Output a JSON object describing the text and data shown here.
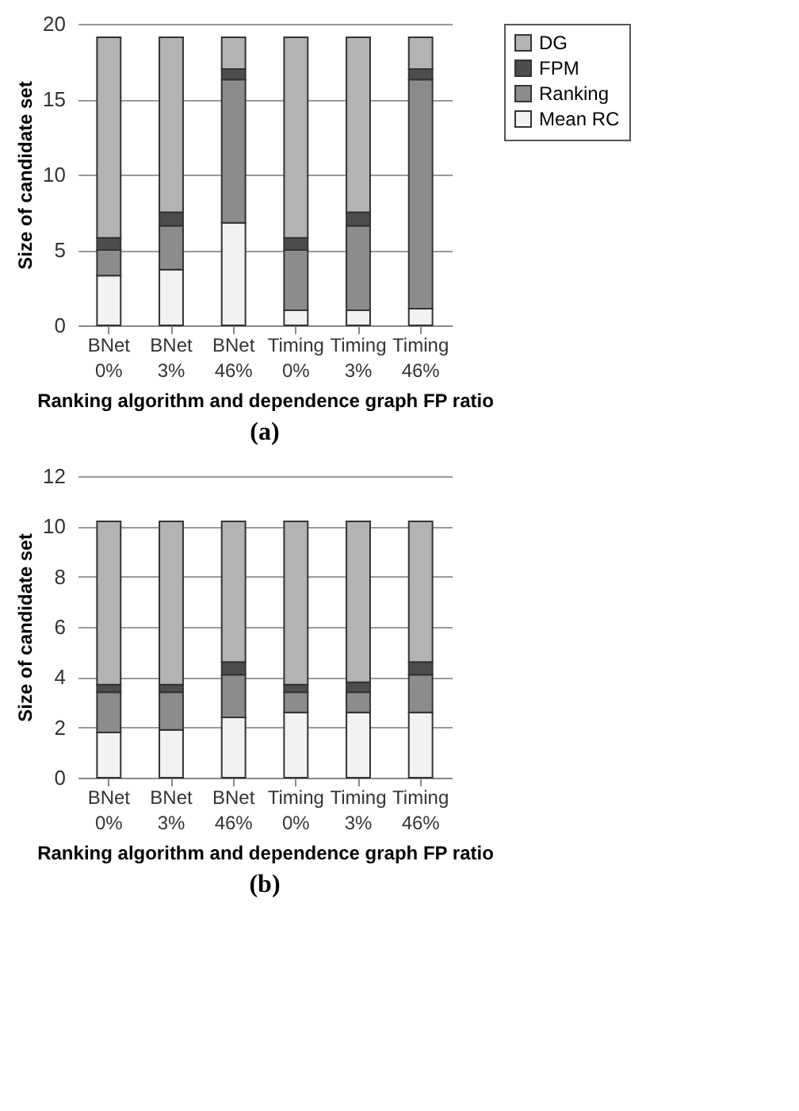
{
  "chart_data": [
    {
      "type": "bar",
      "title": "(a)",
      "xlabel": "Ranking algorithm and dependence graph FP ratio",
      "ylabel": "Size of candidate set",
      "categories": [
        "BNet 0%",
        "BNet 3%",
        "BNet 46%",
        "Timing 0%",
        "Timing 3%",
        "Timing 46%"
      ],
      "stacked": true,
      "ylim": [
        0,
        20
      ],
      "yticks": [
        0,
        5,
        10,
        15,
        20
      ],
      "grid": "y",
      "legend": "right",
      "series": [
        {
          "name": "Mean RC",
          "color": "#f2f2f2",
          "values": [
            3.3,
            3.7,
            6.8,
            1.0,
            1.0,
            1.1
          ]
        },
        {
          "name": "Ranking",
          "color": "#8c8c8c",
          "values": [
            1.7,
            2.9,
            9.5,
            4.0,
            5.6,
            15.2
          ]
        },
        {
          "name": "FPM",
          "color": "#4d4d4d",
          "values": [
            0.8,
            0.9,
            0.7,
            0.8,
            0.9,
            0.7
          ]
        },
        {
          "name": "DG",
          "color": "#b3b3b3",
          "values": [
            13.3,
            11.6,
            2.1,
            13.3,
            11.6,
            2.1
          ]
        }
      ]
    },
    {
      "type": "bar",
      "title": "(b)",
      "xlabel": "Ranking algorithm and dependence graph FP ratio",
      "ylabel": "Size of candidate set",
      "categories": [
        "BNet 0%",
        "BNet 3%",
        "BNet 46%",
        "Timing 0%",
        "Timing 3%",
        "Timing 46%"
      ],
      "stacked": true,
      "ylim": [
        0,
        12
      ],
      "yticks": [
        0,
        2,
        4,
        6,
        8,
        10,
        12
      ],
      "grid": "y",
      "legend": "right",
      "series": [
        {
          "name": "Mean RC",
          "color": "#f2f2f2",
          "values": [
            1.8,
            1.9,
            2.4,
            2.6,
            2.6,
            2.6
          ]
        },
        {
          "name": "Ranking",
          "color": "#8c8c8c",
          "values": [
            1.6,
            1.5,
            1.7,
            0.8,
            0.8,
            1.5
          ]
        },
        {
          "name": "FPM",
          "color": "#4d4d4d",
          "values": [
            0.3,
            0.3,
            0.5,
            0.3,
            0.4,
            0.5
          ]
        },
        {
          "name": "DG",
          "color": "#b3b3b3",
          "values": [
            6.5,
            6.5,
            5.6,
            6.5,
            6.4,
            5.6
          ]
        }
      ]
    }
  ]
}
